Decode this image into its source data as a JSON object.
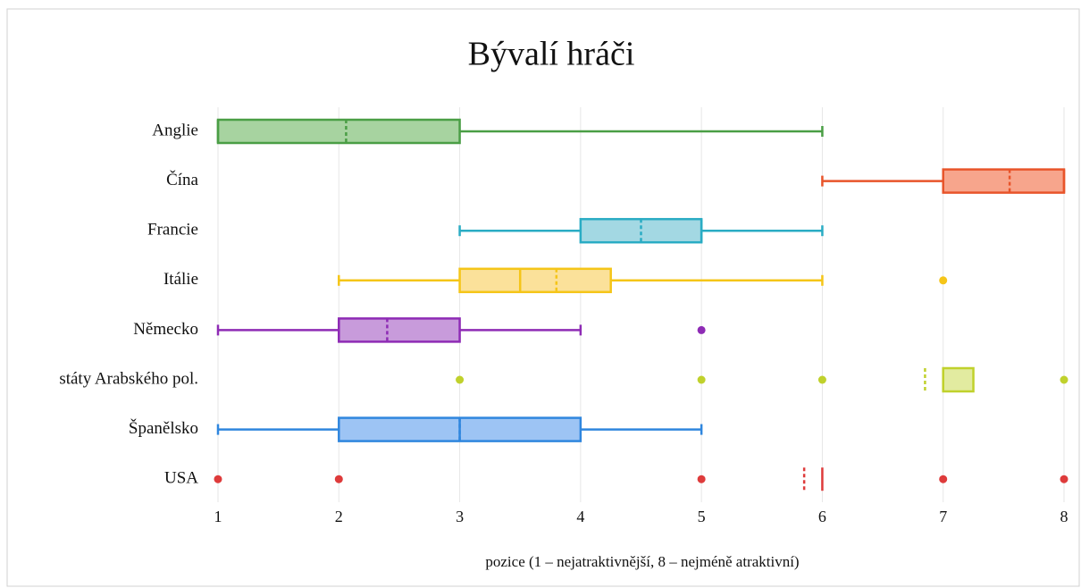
{
  "chart_data": {
    "type": "box",
    "title": "Bývalí hráči",
    "x_label": "pozice (1 – nejatraktivnější, 8 – nejméně atraktivní)",
    "categories": [
      "Anglie",
      "Čína",
      "Francie",
      "Itálie",
      "Německo",
      "státy Arabského pol.",
      "Španělsko",
      "USA"
    ],
    "boxes": [
      {
        "min": 1,
        "q1": 1,
        "median": 1,
        "q3": 3,
        "max": 6,
        "mean": 2.06,
        "outliers": [],
        "color": "#4a9e45",
        "fill": "#a7d3a0"
      },
      {
        "min": 6,
        "q1": 7,
        "median": 8,
        "q3": 8,
        "max": 8,
        "mean": 7.55,
        "outliers": [],
        "color": "#e8542a",
        "fill": "#f7a58c"
      },
      {
        "min": 3,
        "q1": 4,
        "median": 5,
        "q3": 5,
        "max": 6,
        "mean": 4.5,
        "outliers": [],
        "color": "#2aacc4",
        "fill": "#a3d8e3"
      },
      {
        "min": 2,
        "q1": 3,
        "median": 3.5,
        "q3": 4.25,
        "max": 6,
        "mean": 3.8,
        "outliers": [
          7
        ],
        "color": "#f5c518",
        "fill": "#fbe19a"
      },
      {
        "min": 1,
        "q1": 2,
        "median": 2,
        "q3": 3,
        "max": 4,
        "mean": 2.4,
        "outliers": [
          5
        ],
        "color": "#8e2bb5",
        "fill": "#c89bdb"
      },
      {
        "min": 7,
        "q1": 7,
        "median": 7,
        "q3": 7.25,
        "max": 7.25,
        "mean": 6.85,
        "outliers": [
          3,
          5,
          6,
          8
        ],
        "color": "#c0d12c",
        "fill": "#e2eba0"
      },
      {
        "min": 1,
        "q1": 2,
        "median": 3,
        "q3": 4,
        "max": 5,
        "mean": 3,
        "outliers": [],
        "color": "#2f86de",
        "fill": "#9dc4f4"
      },
      {
        "min": 6,
        "q1": 6,
        "median": 6,
        "q3": 6,
        "max": 6,
        "mean": 5.85,
        "outliers": [
          1,
          2,
          5,
          7,
          8
        ],
        "color": "#de3b3b",
        "fill": "#f2a0a0"
      }
    ],
    "xlim": [
      1,
      8
    ],
    "xticks": [
      1,
      2,
      3,
      4,
      5,
      6,
      7,
      8
    ],
    "grid": true
  }
}
